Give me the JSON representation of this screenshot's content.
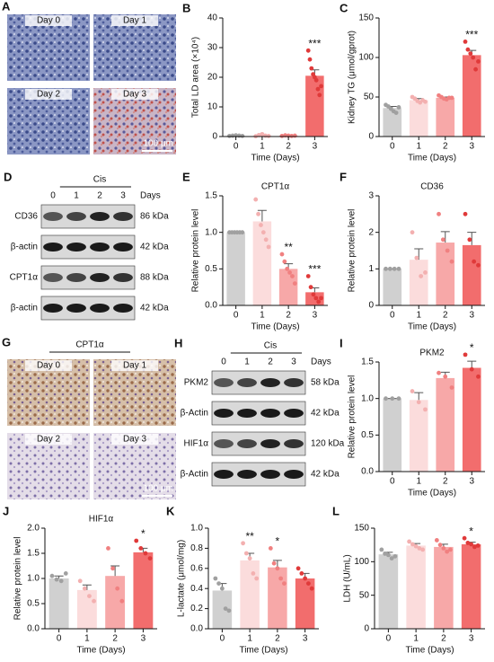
{
  "micrographs": [
    {
      "panel": "A",
      "labels": [
        "Day 0",
        "Day 1",
        "Day 2",
        "Day 3"
      ],
      "scale_bar": "100 μm"
    },
    {
      "panel": "G",
      "title": "CPT1α",
      "labels": [
        "Day 0",
        "Day 1",
        "Day 2",
        "Day 3"
      ],
      "scale_bar": "100 μm"
    }
  ],
  "blots": [
    {
      "panel": "D",
      "group": "Cis",
      "lanes": [
        "0",
        "1",
        "2",
        "3"
      ],
      "lane_unit": "Days",
      "rows": [
        {
          "name": "CD36",
          "size": "86 kDa"
        },
        {
          "name": "β-actin",
          "size": "42 kDa"
        },
        {
          "name": "CPT1α",
          "size": "88 kDa"
        },
        {
          "name": "β-actin",
          "size": "42 kDa"
        }
      ]
    },
    {
      "panel": "H",
      "group": "Cis",
      "lanes": [
        "0",
        "1",
        "2",
        "3"
      ],
      "lane_unit": "Days",
      "rows": [
        {
          "name": "PKM2",
          "size": "58 kDa"
        },
        {
          "name": "β-Actin",
          "size": "42 kDa"
        },
        {
          "name": "HIF1α",
          "size": "120 kDa"
        },
        {
          "name": "β-Actin",
          "size": "42 kDa"
        }
      ]
    }
  ],
  "chart_data": [
    {
      "type": "bar",
      "panel": "B",
      "ylabel": "Total LD area (×10⁴)",
      "xlabel": "Time (Days)",
      "categories": [
        "0",
        "1",
        "2",
        "3"
      ],
      "values": [
        0.3,
        0.3,
        0.3,
        20.5
      ],
      "errors": [
        0.1,
        0.2,
        0.1,
        2
      ],
      "points": [
        [
          0.2,
          0.3,
          0.4,
          0.3,
          0.2
        ],
        [
          0.1,
          0.5,
          0.8,
          0.3,
          0.2
        ],
        [
          0.2,
          0.4,
          0.3,
          0.2,
          0.3
        ],
        [
          29,
          26,
          23,
          21,
          20,
          19,
          16,
          14,
          17
        ]
      ],
      "annotations": [
        null,
        null,
        null,
        "***"
      ],
      "ylim": [
        0,
        40
      ],
      "yticks": [
        0,
        10,
        20,
        30,
        40
      ],
      "colors": [
        "#d0d0d0",
        "#fbdcdc",
        "#f7a8a8",
        "#f26d6d"
      ],
      "point_colors": [
        "#a0a0a0",
        "#f3b0b0",
        "#f08080",
        "#e03a3a"
      ]
    },
    {
      "type": "bar",
      "panel": "C",
      "ylabel": "Kidney TG (μmol/gprot)",
      "xlabel": "Time (Days)",
      "categories": [
        "0",
        "1",
        "2",
        "3"
      ],
      "values": [
        36,
        46,
        49,
        103
      ],
      "errors": [
        2,
        2,
        1,
        6
      ],
      "points": [
        [
          40,
          38,
          35,
          32,
          30,
          37
        ],
        [
          50,
          48,
          45,
          43,
          46,
          44
        ],
        [
          52,
          50,
          48,
          47,
          49,
          49
        ],
        [
          120,
          110,
          105,
          100,
          85,
          95
        ]
      ],
      "annotations": [
        null,
        null,
        null,
        "***"
      ],
      "ylim": [
        0,
        150
      ],
      "yticks": [
        0,
        50,
        100,
        150
      ],
      "colors": [
        "#d0d0d0",
        "#fbdcdc",
        "#f7a8a8",
        "#f26d6d"
      ],
      "point_colors": [
        "#a0a0a0",
        "#f3b0b0",
        "#f08080",
        "#e03a3a"
      ]
    },
    {
      "type": "bar",
      "panel": "E",
      "title": "CPT1α",
      "ylabel": "Relative protein level",
      "xlabel": "Time (Days)",
      "categories": [
        "0",
        "1",
        "2",
        "3"
      ],
      "values": [
        1.0,
        1.15,
        0.5,
        0.18
      ],
      "errors": [
        0,
        0.15,
        0.07,
        0.06
      ],
      "points": [
        [
          1,
          1,
          1,
          1,
          1,
          1
        ],
        [
          1.45,
          1.25,
          1.1,
          1.0,
          0.9,
          0.8
        ],
        [
          0.7,
          0.6,
          0.5,
          0.45,
          0.4,
          0.3
        ],
        [
          0.4,
          0.25,
          0.15,
          0.1,
          0.05,
          0.1
        ]
      ],
      "annotations": [
        null,
        null,
        "**",
        "***"
      ],
      "ylim": [
        0,
        1.5
      ],
      "yticks": [
        {
          "value": 0,
          "label": "0.0"
        },
        {
          "value": 0.5,
          "label": "0.5"
        },
        {
          "value": 1,
          "label": "1.0"
        },
        {
          "value": 1.5,
          "label": "1.5"
        }
      ],
      "colors": [
        "#d0d0d0",
        "#fbdcdc",
        "#f7a8a8",
        "#f26d6d"
      ],
      "point_colors": [
        "#a0a0a0",
        "#f3b0b0",
        "#f08080",
        "#e03a3a"
      ]
    },
    {
      "type": "bar",
      "panel": "F",
      "title": "CD36",
      "ylabel": "Relative protein level",
      "xlabel": "Time (Days)",
      "categories": [
        "0",
        "1",
        "2",
        "3"
      ],
      "values": [
        1,
        1.25,
        1.72,
        1.65
      ],
      "errors": [
        0,
        0.3,
        0.3,
        0.35
      ],
      "points": [
        [
          1,
          1,
          1,
          1
        ],
        [
          2,
          1.3,
          0.8,
          0.9
        ],
        [
          2.5,
          1.8,
          1.5,
          1.2
        ],
        [
          2.5,
          1.8,
          1.2,
          1.1
        ]
      ],
      "annotations": [
        null,
        null,
        null,
        null
      ],
      "ylim": [
        0,
        3
      ],
      "yticks": [
        0,
        1,
        2,
        3
      ],
      "colors": [
        "#d0d0d0",
        "#fbdcdc",
        "#f7a8a8",
        "#f26d6d"
      ],
      "point_colors": [
        "#a0a0a0",
        "#f3b0b0",
        "#f08080",
        "#e03a3a"
      ]
    },
    {
      "type": "bar",
      "panel": "I",
      "title": "PKM2",
      "ylabel": "Relative protein level",
      "xlabel": "Time (Days)",
      "categories": [
        "0",
        "1",
        "2",
        "3"
      ],
      "values": [
        1,
        0.98,
        1.28,
        1.42
      ],
      "errors": [
        0,
        0.1,
        0.08,
        0.09
      ],
      "points": [
        [
          1,
          1,
          1
        ],
        [
          1.1,
          0.95,
          0.85
        ],
        [
          1.35,
          1.3,
          1.15
        ],
        [
          1.6,
          1.4,
          1.3
        ]
      ],
      "annotations": [
        null,
        null,
        null,
        "*"
      ],
      "ylim": [
        0,
        1.5
      ],
      "yticks": [
        {
          "value": 0,
          "label": "0.0"
        },
        {
          "value": 0.5,
          "label": "0.5"
        },
        {
          "value": 1,
          "label": "1.0"
        },
        {
          "value": 1.5,
          "label": "1.5"
        }
      ],
      "colors": [
        "#d0d0d0",
        "#fbdcdc",
        "#f7a8a8",
        "#f26d6d"
      ],
      "point_colors": [
        "#a0a0a0",
        "#f3b0b0",
        "#f08080",
        "#e03a3a"
      ]
    },
    {
      "type": "bar",
      "panel": "J",
      "title": "HIF1α",
      "ylabel": "Relative protein level",
      "xlabel": "Time (Days)",
      "categories": [
        "0",
        "1",
        "2",
        "3"
      ],
      "values": [
        1.0,
        0.77,
        1.05,
        1.52
      ],
      "errors": [
        0.05,
        0.1,
        0.2,
        0.08
      ],
      "points": [
        [
          1.05,
          0.98,
          0.95,
          1.1
        ],
        [
          0.95,
          0.8,
          0.65,
          0.55
        ],
        [
          1.6,
          1.2,
          0.8,
          0.55
        ],
        [
          1.75,
          1.6,
          1.5,
          1.4
        ]
      ],
      "annotations": [
        null,
        null,
        null,
        "*"
      ],
      "ylim": [
        0,
        2
      ],
      "yticks": [
        {
          "value": 0,
          "label": "0.0"
        },
        {
          "value": 0.5,
          "label": "0.5"
        },
        {
          "value": 1,
          "label": "1.0"
        },
        {
          "value": 1.5,
          "label": "1.5"
        },
        {
          "value": 2,
          "label": "2.0"
        }
      ],
      "colors": [
        "#d0d0d0",
        "#fbdcdc",
        "#f7a8a8",
        "#f26d6d"
      ],
      "point_colors": [
        "#a0a0a0",
        "#f3b0b0",
        "#f08080",
        "#e03a3a"
      ]
    },
    {
      "type": "bar",
      "panel": "K",
      "ylabel": "L-lactate (μmol/mg)",
      "xlabel": "Time (Days)",
      "categories": [
        "0",
        "1",
        "2",
        "3"
      ],
      "values": [
        0.38,
        0.68,
        0.61,
        0.5
      ],
      "errors": [
        0.07,
        0.07,
        0.07,
        0.05
      ],
      "points": [
        [
          0.5,
          0.45,
          0.4,
          0.2,
          0.18
        ],
        [
          0.85,
          0.75,
          0.7,
          0.55,
          0.5
        ],
        [
          0.8,
          0.65,
          0.6,
          0.5,
          0.45
        ],
        [
          0.6,
          0.55,
          0.5,
          0.45,
          0.4
        ]
      ],
      "annotations": [
        null,
        "**",
        "*",
        null
      ],
      "ylim": [
        0,
        1
      ],
      "yticks": [
        {
          "value": 0,
          "label": "0.0"
        },
        {
          "value": 0.2,
          "label": "0.2"
        },
        {
          "value": 0.4,
          "label": "0.4"
        },
        {
          "value": 0.6,
          "label": "0.6"
        },
        {
          "value": 0.8,
          "label": "0.8"
        },
        {
          "value": 1,
          "label": "1.0"
        }
      ],
      "colors": [
        "#d0d0d0",
        "#fbdcdc",
        "#f7a8a8",
        "#f26d6d"
      ],
      "point_colors": [
        "#a0a0a0",
        "#f3b0b0",
        "#f08080",
        "#e03a3a"
      ]
    },
    {
      "type": "bar",
      "panel": "L",
      "ylabel": "LDH (U/mL)",
      "xlabel": "Time (Days)",
      "categories": [
        "0",
        "1",
        "2",
        "3"
      ],
      "values": [
        111,
        124,
        122,
        126
      ],
      "errors": [
        3,
        3,
        4,
        3
      ],
      "points": [
        [
          118,
          112,
          110,
          105,
          108
        ],
        [
          130,
          126,
          123,
          120,
          118
        ],
        [
          132,
          125,
          120,
          115,
          118
        ],
        [
          135,
          128,
          126,
          122,
          124
        ]
      ],
      "annotations": [
        null,
        null,
        null,
        "*"
      ],
      "ylim": [
        0,
        150
      ],
      "yticks": [
        0,
        50,
        100,
        150
      ],
      "colors": [
        "#d0d0d0",
        "#fbdcdc",
        "#f7a8a8",
        "#f26d6d"
      ],
      "point_colors": [
        "#a0a0a0",
        "#f3b0b0",
        "#f08080",
        "#e03a3a"
      ]
    }
  ]
}
